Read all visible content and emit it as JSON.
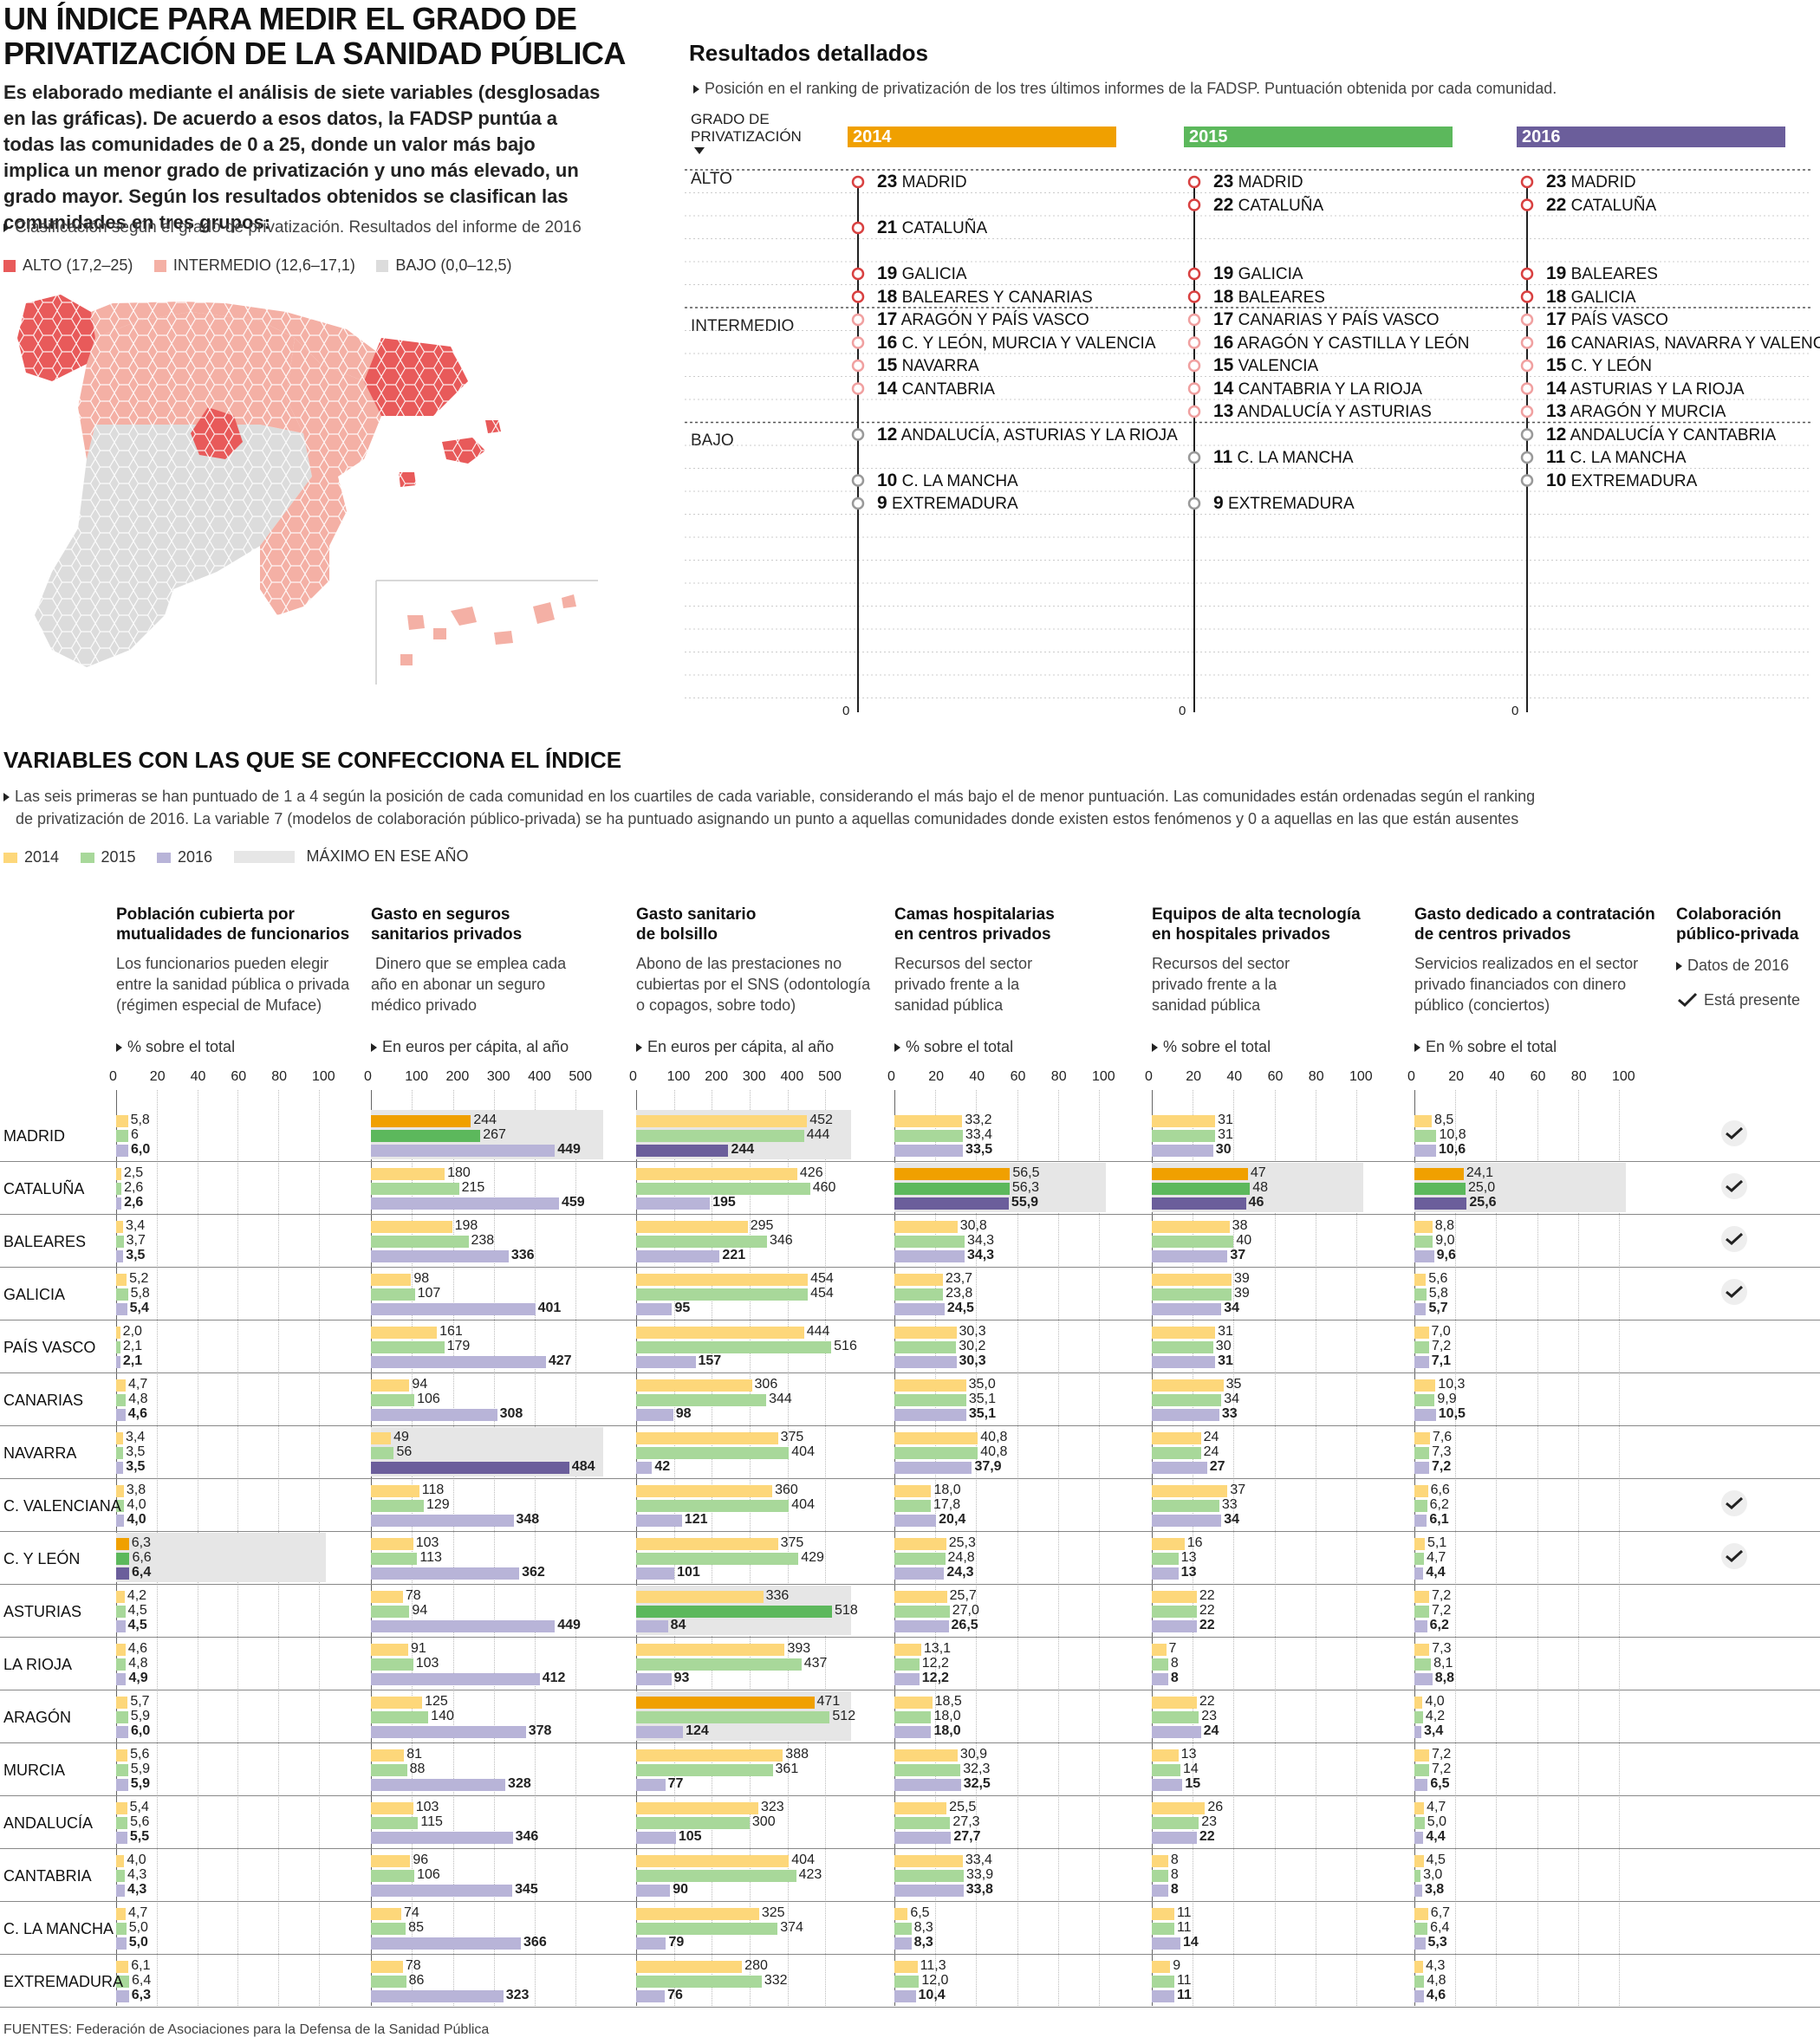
{
  "header": {
    "title_line1": "UN ÍNDICE PARA MEDIR EL GRADO DE",
    "title_line2": "PRIVATIZACIÓN DE LA SANIDAD PÚBLICA",
    "intro": "Es elaborado mediante el análisis de siete variables (desglosadas en las gráficas). De acuerdo a esos datos, la FADSP puntúa a todas las comunidades de 0 a 25, donde un valor más bajo implica un menor grado de privatización y uno más elevado, un grado mayor. Según los resultados obtenidos se clasifican las comunidades en tres grupos:",
    "map_note": "Clasificación según el grado de privatización. Resultados del informe de 2016"
  },
  "map_legend": [
    {
      "label": "ALTO (17,2–25)",
      "color": "#e85a5a"
    },
    {
      "label": "INTERMEDIO (12,6–17,1)",
      "color": "#f4b0a5"
    },
    {
      "label": "BAJO (0,0–12,5)",
      "color": "#dcdcdc"
    }
  ],
  "results": {
    "title": "Resultados detallados",
    "note": "Posición en el ranking de privatización de los tres últimos informes de la FADSP. Puntuación obtenida por cada comunidad.",
    "axis_label_1": "GRADO DE",
    "axis_label_2": "PRIVATIZACIÓN",
    "groups": [
      "ALTO",
      "INTERMEDIO",
      "BAJO"
    ],
    "zero": "0",
    "years": [
      {
        "year": "2014",
        "color": "#f0a000",
        "entries": [
          {
            "score": 23,
            "name": "MADRID"
          },
          {
            "score": 21,
            "name": "CATALUÑA"
          },
          {
            "score": 19,
            "name": "GALICIA"
          },
          {
            "score": 18,
            "name": "BALEARES Y CANARIAS"
          },
          {
            "score": 17,
            "name": "ARAGÓN Y PAÍS VASCO"
          },
          {
            "score": 16,
            "name": "C. Y LEÓN, MURCIA Y VALENCIA"
          },
          {
            "score": 15,
            "name": "NAVARRA"
          },
          {
            "score": 14,
            "name": "CANTABRIA"
          },
          {
            "score": 12,
            "name": "ANDALUCÍA, ASTURIAS Y LA RIOJA"
          },
          {
            "score": 10,
            "name": "C. LA MANCHA"
          },
          {
            "score": 9,
            "name": "EXTREMADURA"
          }
        ]
      },
      {
        "year": "2015",
        "color": "#5cb85c",
        "entries": [
          {
            "score": 23,
            "name": "MADRID"
          },
          {
            "score": 22,
            "name": "CATALUÑA"
          },
          {
            "score": 19,
            "name": "GALICIA"
          },
          {
            "score": 18,
            "name": "BALEARES"
          },
          {
            "score": 17,
            "name": "CANARIAS Y PAÍS VASCO"
          },
          {
            "score": 16,
            "name": "ARAGÓN Y CASTILLA Y LEÓN"
          },
          {
            "score": 15,
            "name": "VALENCIA"
          },
          {
            "score": 14,
            "name": "CANTABRIA Y LA RIOJA"
          },
          {
            "score": 13,
            "name": "ANDALUCÍA Y ASTURIAS"
          },
          {
            "score": 11,
            "name": "C. LA MANCHA"
          },
          {
            "score": 9,
            "name": "EXTREMADURA"
          }
        ]
      },
      {
        "year": "2016",
        "color": "#6b5e9b",
        "entries": [
          {
            "score": 23,
            "name": "MADRID"
          },
          {
            "score": 22,
            "name": "CATALUÑA"
          },
          {
            "score": 19,
            "name": "BALEARES"
          },
          {
            "score": 18,
            "name": "GALICIA"
          },
          {
            "score": 17,
            "name": "PAÍS VASCO"
          },
          {
            "score": 16,
            "name": "CANARIAS, NAVARRA Y VALENCIA"
          },
          {
            "score": 15,
            "name": "C. Y LEÓN"
          },
          {
            "score": 14,
            "name": "ASTURIAS Y LA RIOJA"
          },
          {
            "score": 13,
            "name": "ARAGÓN Y MURCIA"
          },
          {
            "score": 12,
            "name": "ANDALUCÍA Y CANTABRIA"
          },
          {
            "score": 11,
            "name": "C. LA MANCHA"
          },
          {
            "score": 10,
            "name": "EXTREMADURA"
          }
        ]
      }
    ]
  },
  "variables": {
    "title": "VARIABLES CON LAS QUE SE CONFECCIONA EL ÍNDICE",
    "note_1": "Las seis primeras  se han puntuado de 1 a 4 según la posición de cada comunidad en los cuartiles de cada variable, considerando el más bajo el de menor puntuación. Las comunidades están ordenadas según el ranking",
    "note_2": "de privatización de 2016.  La variable 7 (modelos de colaboración público-privada) se ha puntuado asignando un punto a aquellas comunidades donde existen estos fenómenos y 0 a aquellas en las que están ausentes",
    "legend": [
      {
        "label": "2014",
        "color": "#fdd77a"
      },
      {
        "label": "2015",
        "color": "#a8d89a"
      },
      {
        "label": "2016",
        "color": "#b8b4d8"
      },
      {
        "label": "MÁXIMO EN ESE AÑO",
        "color": "#e6e6e6"
      }
    ],
    "colab_title_1": "Colaboración",
    "colab_title_2": "público-privada",
    "colab_note": "Datos de 2016",
    "colab_present": "Está presente",
    "colab": [
      true,
      true,
      true,
      true,
      false,
      false,
      false,
      true,
      true,
      false,
      false,
      false,
      false,
      false,
      false,
      false,
      false
    ]
  },
  "source": "FUENTES: Federación de Asociaciones para la Defensa de la Sanidad Pública",
  "chart_data": {
    "type": "bar",
    "categories": [
      "MADRID",
      "CATALUÑA",
      "BALEARES",
      "GALICIA",
      "PAÍS VASCO",
      "CANARIAS",
      "NAVARRA",
      "C. VALENCIANA",
      "C. Y LEÓN",
      "ASTURIAS",
      "LA RIOJA",
      "ARAGÓN",
      "MURCIA",
      "ANDALUCÍA",
      "CANTABRIA",
      "C. LA MANCHA",
      "EXTREMADURA"
    ],
    "years": [
      "2014",
      "2015",
      "2016"
    ],
    "panels": [
      {
        "title_1": "Población cubierta por",
        "title_2": "mutualidades de funcionarios",
        "desc": [
          "Los funcionarios pueden elegir",
          "entre la sanidad pública o privada",
          "(régimen especial de Muface)"
        ],
        "unit": "% sobre el total",
        "xlim": [
          0,
          100
        ],
        "ticks": [
          "0",
          "20",
          "40",
          "60",
          "80",
          "100"
        ],
        "v2014": [
          "5,8",
          "2,5",
          "3,4",
          "5,2",
          "2,0",
          "4,7",
          "3,4",
          "3,8",
          "6,3",
          "4,2",
          "4,6",
          "5,7",
          "5,6",
          "5,4",
          "4,0",
          "4,7",
          "6,1"
        ],
        "v2015": [
          "6",
          "2,6",
          "3,7",
          "5,8",
          "2,1",
          "4,8",
          "3,5",
          "4,0",
          "6,6",
          "4,5",
          "4,8",
          "5,9",
          "5,9",
          "5,6",
          "4,3",
          "5,0",
          "6,4"
        ],
        "v2016": [
          "6,0",
          "2,6",
          "3,5",
          "5,4",
          "2,1",
          "4,6",
          "3,5",
          "4,0",
          "6,4",
          "4,5",
          "4,9",
          "6,0",
          "5,9",
          "5,5",
          "4,3",
          "5,0",
          "6,3"
        ]
      },
      {
        "title_1": "Gasto en seguros",
        "title_2": "sanitarios privados",
        "desc": [
          " Dinero que se emplea cada",
          "año en abonar un seguro",
          "médico privado"
        ],
        "unit": "En euros per cápita, al año",
        "xlim": [
          0,
          550
        ],
        "ticks": [
          "0",
          "100",
          "200",
          "300",
          "400",
          "500"
        ],
        "v2014": [
          "244",
          "180",
          "198",
          "98",
          "161",
          "94",
          "49",
          "118",
          "103",
          "78",
          "91",
          "125",
          "81",
          "103",
          "96",
          "74",
          "78"
        ],
        "v2015": [
          "267",
          "215",
          "238",
          "107",
          "179",
          "106",
          "56",
          "129",
          "113",
          "94",
          "103",
          "140",
          "88",
          "115",
          "106",
          "85",
          "86"
        ],
        "v2016": [
          "449",
          "459",
          "336",
          "401",
          "427",
          "308",
          "484",
          "348",
          "362",
          "449",
          "412",
          "378",
          "328",
          "346",
          "345",
          "366",
          "323"
        ]
      },
      {
        "title_1": "Gasto sanitario",
        "title_2": "de bolsillo",
        "desc": [
          "Abono de las prestaciones no",
          "cubiertas por el SNS (odontología",
          "o copagos, sobre todo)"
        ],
        "unit": "En euros per cápita, al año",
        "xlim": [
          0,
          550
        ],
        "ticks": [
          "0",
          "100",
          "200",
          "300",
          "400",
          "500"
        ],
        "v2014": [
          "452",
          "426",
          "295",
          "454",
          "444",
          "306",
          "375",
          "360",
          "375",
          "336",
          "393",
          "471",
          "388",
          "323",
          "404",
          "325",
          "280"
        ],
        "v2015": [
          "444",
          "460",
          "346",
          "454",
          "516",
          "344",
          "404",
          "404",
          "429",
          "518",
          "437",
          "512",
          "361",
          "300",
          "423",
          "374",
          "332"
        ],
        "v2016": [
          "244",
          "195",
          "221",
          "95",
          "157",
          "98",
          "42",
          "121",
          "101",
          "84",
          "93",
          "124",
          "77",
          "105",
          "90",
          "79",
          "76"
        ]
      },
      {
        "title_1": "Camas hospitalarias",
        "title_2": "en centros privados",
        "desc": [
          "Recursos del sector",
          "privado frente a la",
          "sanidad pública"
        ],
        "unit": "% sobre el total",
        "xlim": [
          0,
          100
        ],
        "ticks": [
          "0",
          "20",
          "40",
          "60",
          "80",
          "100"
        ],
        "v2014": [
          "33,2",
          "56,5",
          "30,8",
          "23,7",
          "30,3",
          "35,0",
          "40,8",
          "18,0",
          "25,3",
          "25,7",
          "13,1",
          "18,5",
          "30,9",
          "25,5",
          "33,4",
          "6,5",
          "11,3"
        ],
        "v2015": [
          "33,4",
          "56,3",
          "34,3",
          "23,8",
          "30,2",
          "35,1",
          "40,8",
          "17,8",
          "24,8",
          "27,0",
          "12,2",
          "18,0",
          "32,3",
          "27,3",
          "33,9",
          "8,3",
          "12,0"
        ],
        "v2016": [
          "33,5",
          "55,9",
          "34,3",
          "24,5",
          "30,3",
          "35,1",
          "37,9",
          "20,4",
          "24,3",
          "26,5",
          "12,2",
          "18,0",
          "32,5",
          "27,7",
          "33,8",
          "8,3",
          "10,4"
        ]
      },
      {
        "title_1": "Equipos de alta tecnología",
        "title_2": "en hospitales privados",
        "desc": [
          "Recursos del sector",
          "privado frente a la",
          "sanidad pública"
        ],
        "unit": "% sobre el total",
        "xlim": [
          0,
          100
        ],
        "ticks": [
          "0",
          "20",
          "40",
          "60",
          "80",
          "100"
        ],
        "v2014": [
          "31",
          "47",
          "38",
          "39",
          "31",
          "35",
          "24",
          "37",
          "16",
          "22",
          "7",
          "22",
          "13",
          "26",
          "8",
          "11",
          "9"
        ],
        "v2015": [
          "31",
          "48",
          "40",
          "39",
          "30",
          "34",
          "24",
          "33",
          "13",
          "22",
          "8",
          "23",
          "14",
          "23",
          "8",
          "11",
          "11"
        ],
        "v2016": [
          "30",
          "46",
          "37",
          "34",
          "31",
          "33",
          "27",
          "34",
          "13",
          "22",
          "8",
          "24",
          "15",
          "22",
          "8",
          "14",
          "11"
        ]
      },
      {
        "title_1": "Gasto dedicado a contratación",
        "title_2": "de centros privados",
        "desc": [
          "Servicios realizados en el sector",
          "privado financiados con dinero",
          "público (conciertos)"
        ],
        "unit": "En % sobre el total",
        "xlim": [
          0,
          100
        ],
        "ticks": [
          "0",
          "20",
          "40",
          "60",
          "80",
          "100"
        ],
        "v2014": [
          "8,5",
          "24,1",
          "8,8",
          "5,6",
          "7,0",
          "10,3",
          "7,6",
          "6,6",
          "5,1",
          "7,2",
          "7,3",
          "4,0",
          "7,2",
          "4,7",
          "4,5",
          "6,7",
          "4,3"
        ],
        "v2015": [
          "10,8",
          "25,0",
          "9,0",
          "5,8",
          "7,2",
          "9,9",
          "7,3",
          "6,2",
          "4,7",
          "7,2",
          "8,1",
          "4,2",
          "7,2",
          "5,0",
          "3,0",
          "6,4",
          "4,8"
        ],
        "v2016": [
          "10,6",
          "25,6",
          "9,6",
          "5,7",
          "7,1",
          "10,5",
          "7,2",
          "6,1",
          "4,4",
          "6,2",
          "8,8",
          "3,4",
          "6,5",
          "4,4",
          "3,8",
          "5,3",
          "4,6"
        ]
      }
    ]
  }
}
